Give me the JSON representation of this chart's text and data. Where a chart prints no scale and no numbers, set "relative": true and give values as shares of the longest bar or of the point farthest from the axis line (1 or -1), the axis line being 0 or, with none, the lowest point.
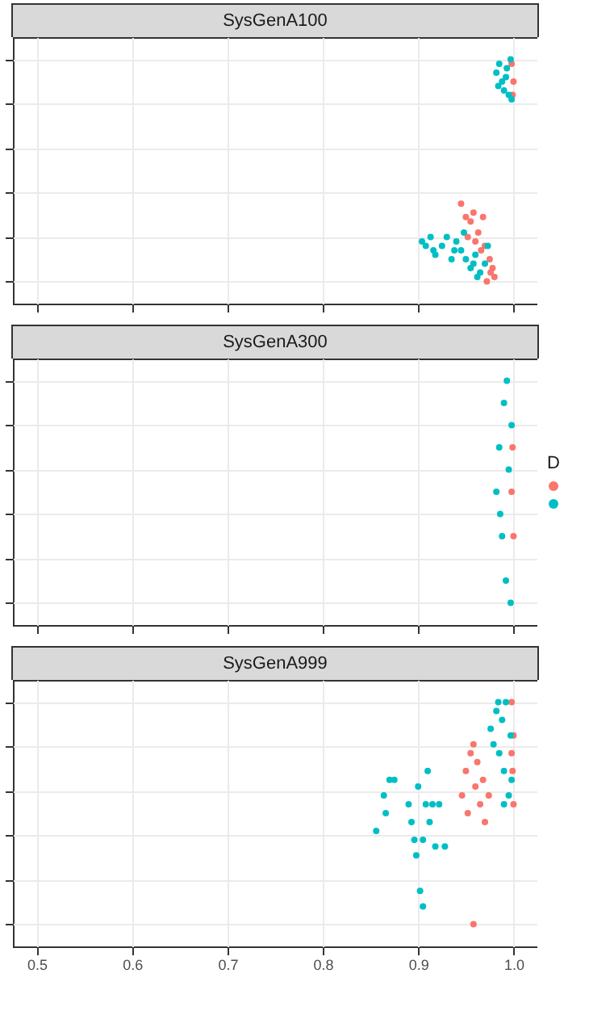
{
  "chart_data": [
    {
      "type": "scatter",
      "title": "SysGenA100",
      "relative": true,
      "xlim": [
        0.475,
        1.025
      ],
      "xticks": [
        0.5,
        0.6,
        0.7,
        0.8,
        0.9,
        1
      ],
      "tick_labels": false,
      "grid": true,
      "marker": "circle",
      "series": [
        {
          "color": "#f8766d",
          "x": [
            0.998,
            1.0,
            0.999,
            0.945,
            0.95,
            0.955,
            0.958,
            0.963,
            0.968,
            0.97,
            0.975,
            0.978,
            0.98,
            0.972,
            0.976,
            0.952,
            0.96,
            0.966
          ],
          "values": [
            0.98,
            0.9,
            0.84,
            0.35,
            0.29,
            0.27,
            0.31,
            0.22,
            0.29,
            0.16,
            0.1,
            0.06,
            0.02,
            0,
            0.04,
            0.2,
            0.18,
            0.14
          ]
        },
        {
          "color": "#00bfc4",
          "x": [
            0.982,
            0.985,
            0.988,
            0.99,
            0.993,
            0.995,
            0.998,
            0.984,
            0.992,
            0.997,
            0.904,
            0.908,
            0.913,
            0.916,
            0.918,
            0.925,
            0.93,
            0.935,
            0.94,
            0.945,
            0.95,
            0.955,
            0.96,
            0.965,
            0.97,
            0.973,
            0.948,
            0.958,
            0.938,
            0.962
          ],
          "values": [
            0.94,
            0.98,
            0.9,
            0.86,
            0.96,
            0.84,
            0.82,
            0.88,
            0.92,
            1,
            0.18,
            0.16,
            0.2,
            0.14,
            0.12,
            0.16,
            0.2,
            0.1,
            0.18,
            0.14,
            0.1,
            0.06,
            0.12,
            0.04,
            0.08,
            0.16,
            0.22,
            0.08,
            0.14,
            0.02
          ]
        }
      ]
    },
    {
      "type": "scatter",
      "title": "SysGenA300",
      "relative": true,
      "xlim": [
        0.475,
        1.025
      ],
      "xticks": [
        0.5,
        0.6,
        0.7,
        0.8,
        0.9,
        1
      ],
      "tick_labels": false,
      "grid": true,
      "marker": "circle",
      "legend_title": "D",
      "series": [
        {
          "color": "#f8766d",
          "x": [
            0.998,
            1.0,
            0.999
          ],
          "values": [
            0.5,
            0.3,
            0.7
          ]
        },
        {
          "color": "#00bfc4",
          "x": [
            0.982,
            0.985,
            0.988,
            0.99,
            0.992,
            0.995,
            0.997,
            0.993,
            0.986,
            0.998
          ],
          "values": [
            0.5,
            0.7,
            0.3,
            0.9,
            0.1,
            0.6,
            0,
            1,
            0.4,
            0.8
          ]
        }
      ]
    },
    {
      "type": "scatter",
      "title": "SysGenA999",
      "relative": true,
      "xlim": [
        0.475,
        1.025
      ],
      "xticks": [
        0.5,
        0.6,
        0.7,
        0.8,
        0.9,
        {
          "value": 1,
          "label": "1.0"
        }
      ],
      "tick_labels": "x",
      "grid": true,
      "marker": "circle",
      "series": [
        {
          "color": "#f8766d",
          "x": [
            0.946,
            0.95,
            0.955,
            0.958,
            0.96,
            0.962,
            0.965,
            0.968,
            0.97,
            0.974,
            0.952,
            0.958,
            0.998,
            1.0,
            0.999,
            1.0,
            0.998
          ],
          "values": [
            0.58,
            0.69,
            0.77,
            0.81,
            0.62,
            0.73,
            0.54,
            0.65,
            0.46,
            0.58,
            0.5,
            0,
            1,
            0.85,
            0.69,
            0.54,
            0.77
          ]
        },
        {
          "color": "#00bfc4",
          "x": [
            0.856,
            0.864,
            0.866,
            0.87,
            0.875,
            0.89,
            0.893,
            0.896,
            0.898,
            0.9,
            0.902,
            0.905,
            0.908,
            0.91,
            0.912,
            0.915,
            0.918,
            0.922,
            0.928,
            0.905,
            0.976,
            0.979,
            0.982,
            0.985,
            0.988,
            0.99,
            0.992,
            0.995,
            0.997,
            0.998,
            0.99,
            0.984
          ],
          "values": [
            0.42,
            0.58,
            0.5,
            0.65,
            0.65,
            0.54,
            0.46,
            0.38,
            0.31,
            0.62,
            0.15,
            0.08,
            0.54,
            0.69,
            0.46,
            0.54,
            0.35,
            0.54,
            0.35,
            0.38,
            0.88,
            0.81,
            0.96,
            0.77,
            0.92,
            0.69,
            1,
            0.58,
            0.85,
            0.65,
            0.54,
            1
          ]
        }
      ]
    }
  ]
}
